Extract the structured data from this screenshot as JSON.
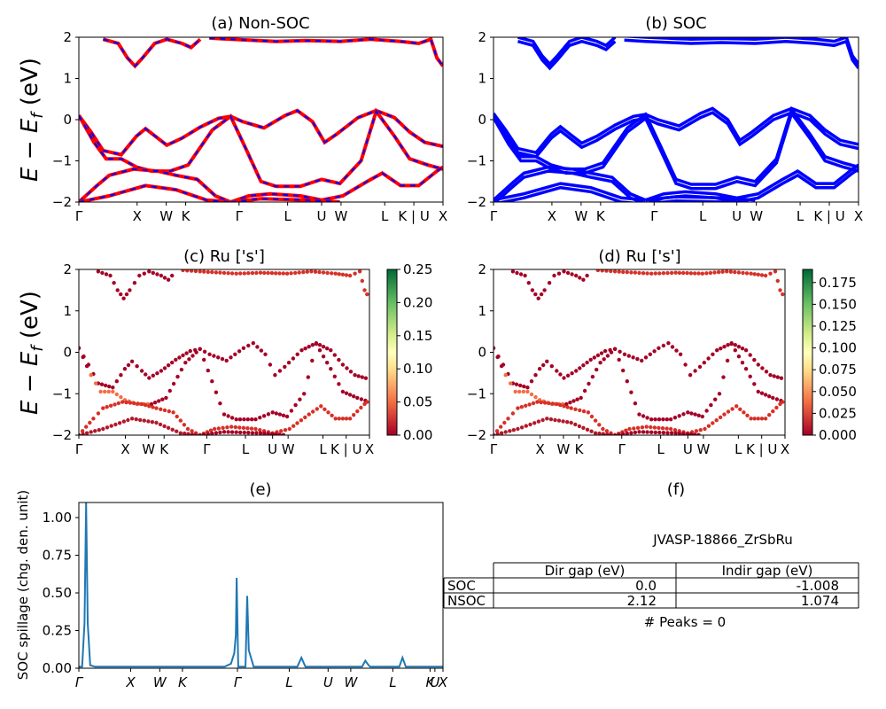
{
  "chart_data": [
    {
      "id": "a",
      "type": "line",
      "title": "(a) Non-SOC",
      "ylabel": "E - E_f (eV)",
      "ylim": [
        -2,
        2
      ],
      "yticks": [
        "2",
        "1",
        "0",
        "-1",
        "-2"
      ],
      "kpoints": [
        "Γ",
        "X",
        "W",
        "K",
        "Γ",
        "L",
        "U",
        "W",
        "L",
        "K | U",
        "X"
      ],
      "series_colors": [
        "#ff0000",
        "#0000ff"
      ],
      "bands": [
        [
          [
            0,
            0.1
          ],
          [
            0.4,
            -0.3
          ],
          [
            0.8,
            -0.75
          ],
          [
            1.4,
            -0.85
          ],
          [
            1.9,
            -0.4
          ],
          [
            2.2,
            -0.22
          ],
          [
            2.6,
            -0.45
          ],
          [
            2.9,
            -0.62
          ],
          [
            3.4,
            -0.45
          ],
          [
            4.0,
            -0.18
          ],
          [
            4.6,
            0.03
          ],
          [
            5.0,
            0.08
          ],
          [
            5.4,
            -0.05
          ],
          [
            6.1,
            -0.2
          ],
          [
            6.8,
            0.1
          ],
          [
            7.2,
            0.22
          ],
          [
            7.7,
            -0.05
          ],
          [
            8.1,
            -0.55
          ],
          [
            8.5,
            -0.35
          ],
          [
            9.2,
            0.05
          ],
          [
            9.8,
            0.22
          ],
          [
            10.4,
            0.05
          ],
          [
            10.9,
            -0.3
          ],
          [
            11.4,
            -0.55
          ],
          [
            12.0,
            -0.65
          ]
        ],
        [
          [
            0,
            0.1
          ],
          [
            0.5,
            -0.55
          ],
          [
            0.9,
            -0.95
          ],
          [
            1.4,
            -0.95
          ],
          [
            1.9,
            -1.15
          ],
          [
            2.4,
            -1.25
          ],
          [
            3.0,
            -1.25
          ],
          [
            3.6,
            -1.1
          ],
          [
            4.4,
            -0.25
          ],
          [
            5.0,
            0.08
          ],
          [
            5.5,
            -0.7
          ],
          [
            6.0,
            -1.5
          ],
          [
            6.5,
            -1.62
          ],
          [
            7.3,
            -1.62
          ],
          [
            8.0,
            -1.45
          ],
          [
            8.6,
            -1.55
          ],
          [
            9.3,
            -1.0
          ],
          [
            9.8,
            0.2
          ],
          [
            10.4,
            -0.4
          ],
          [
            10.9,
            -0.95
          ],
          [
            11.5,
            -1.1
          ],
          [
            12.0,
            -1.2
          ]
        ],
        [
          [
            0,
            -2.0
          ],
          [
            0.6,
            -1.6
          ],
          [
            1.0,
            -1.35
          ],
          [
            1.8,
            -1.2
          ],
          [
            2.6,
            -1.25
          ],
          [
            3.2,
            -1.35
          ],
          [
            3.9,
            -1.45
          ],
          [
            4.5,
            -1.85
          ],
          [
            5.0,
            -2.0
          ]
        ],
        [
          [
            5.0,
            -2.0
          ],
          [
            5.6,
            -1.85
          ],
          [
            6.3,
            -1.8
          ],
          [
            7.3,
            -1.85
          ],
          [
            8.0,
            -1.95
          ],
          [
            8.7,
            -1.85
          ],
          [
            9.5,
            -1.5
          ],
          [
            10.0,
            -1.3
          ],
          [
            10.6,
            -1.6
          ],
          [
            11.2,
            -1.6
          ],
          [
            11.8,
            -1.25
          ],
          [
            12.0,
            -1.15
          ]
        ],
        [
          [
            0,
            -2.0
          ],
          [
            1.0,
            -1.85
          ],
          [
            2.2,
            -1.6
          ],
          [
            3.2,
            -1.7
          ],
          [
            4.2,
            -1.95
          ],
          [
            5.0,
            -2.0
          ]
        ],
        [
          [
            5.0,
            -2.0
          ],
          [
            6.0,
            -1.92
          ],
          [
            7.5,
            -1.95
          ],
          [
            8.6,
            -2.0
          ]
        ],
        [
          [
            0.8,
            1.95
          ],
          [
            1.3,
            1.85
          ],
          [
            1.6,
            1.5
          ],
          [
            1.85,
            1.3
          ],
          [
            2.1,
            1.5
          ],
          [
            2.5,
            1.85
          ],
          [
            2.9,
            1.95
          ],
          [
            3.4,
            1.85
          ],
          [
            3.7,
            1.75
          ],
          [
            4.0,
            1.95
          ]
        ],
        [
          [
            4.3,
            1.98
          ],
          [
            5.0,
            1.95
          ],
          [
            6.5,
            1.9
          ],
          [
            7.5,
            1.92
          ],
          [
            8.6,
            1.9
          ],
          [
            9.6,
            1.95
          ],
          [
            10.6,
            1.9
          ],
          [
            11.2,
            1.85
          ],
          [
            11.6,
            1.95
          ],
          [
            11.8,
            1.5
          ],
          [
            12.0,
            1.3
          ]
        ]
      ]
    },
    {
      "id": "b",
      "type": "line",
      "title": "(b) SOC",
      "ylim": [
        -2,
        2
      ],
      "yticks": [
        "2",
        "1",
        "0",
        "-1",
        "-2"
      ],
      "kpoints": [
        "Γ",
        "X",
        "W",
        "K",
        "Γ",
        "L",
        "U",
        "W",
        "L",
        "K | U",
        "X"
      ],
      "series_colors": [
        "#0000ff"
      ]
    },
    {
      "id": "c",
      "type": "scatter",
      "title": "(c)  Ru ['s']",
      "ylabel": "E - E_f (eV)",
      "ylim": [
        -2,
        2
      ],
      "yticks": [
        "2",
        "1",
        "0",
        "-1",
        "-2"
      ],
      "kpoints": [
        "Γ",
        "X",
        "W",
        "K",
        "Γ",
        "L",
        "U",
        "W",
        "L",
        "K | U",
        "X"
      ],
      "colorbar": {
        "min": 0.0,
        "max": 0.25,
        "ticks": [
          "0.25",
          "0.20",
          "0.15",
          "0.10",
          "0.05",
          "0.00"
        ],
        "colormap": "RdYlGn"
      }
    },
    {
      "id": "d",
      "type": "scatter",
      "title": "(d) Ru ['s']",
      "ylim": [
        -2,
        2
      ],
      "yticks": [
        "2",
        "1",
        "0",
        "-1",
        "-2"
      ],
      "kpoints": [
        "Γ",
        "X",
        "W",
        "K",
        "Γ",
        "L",
        "U",
        "W",
        "L",
        "K | U",
        "X"
      ],
      "colorbar": {
        "min": 0.0,
        "max": 0.19,
        "ticks": [
          "0.175",
          "0.150",
          "0.125",
          "0.100",
          "0.075",
          "0.050",
          "0.025",
          "0.000"
        ],
        "colormap": "RdYlGn"
      }
    },
    {
      "id": "e",
      "type": "line",
      "title": "(e)",
      "ylabel": "SOC spillage (chg. den. unit)",
      "ylim": [
        0,
        1.1
      ],
      "yticks": [
        "1.00",
        "0.75",
        "0.50",
        "0.25",
        "0.00"
      ],
      "kpoints": [
        "Γ",
        "X",
        "W",
        "K",
        "Γ",
        "L",
        "U",
        "W",
        "L",
        "K",
        "U",
        "X"
      ],
      "x": [
        0,
        0.2,
        0.35,
        0.45,
        0.55,
        0.7,
        1,
        4,
        7,
        9,
        9.4,
        9.6,
        9.7,
        9.75,
        9.85,
        10.0,
        10.3,
        10.4,
        10.5,
        10.8,
        11.0,
        12,
        13.5,
        13.75,
        14.0,
        15,
        17.5,
        17.7,
        17.9,
        18.0,
        19,
        19.8,
        20.0,
        20.2,
        21,
        22.5
      ],
      "values": [
        0.01,
        0.01,
        0.3,
        1.1,
        0.3,
        0.02,
        0.01,
        0.01,
        0.01,
        0.01,
        0.03,
        0.1,
        0.22,
        0.6,
        0.01,
        0.01,
        0.01,
        0.48,
        0.12,
        0.01,
        0.01,
        0.01,
        0.01,
        0.07,
        0.01,
        0.01,
        0.01,
        0.05,
        0.02,
        0.01,
        0.01,
        0.01,
        0.07,
        0.01,
        0.01,
        0.01
      ]
    },
    {
      "id": "f",
      "type": "table",
      "title": "(f)",
      "subtitle": "JVASP-18866_ZrSbRu",
      "columns": [
        "Dir gap (eV)",
        "Indir gap (eV)"
      ],
      "rows": [
        {
          "label": "SOC",
          "dir": "0.0",
          "indir": "-1.008"
        },
        {
          "label": "NSOC",
          "dir": "2.12",
          "indir": "1.074"
        }
      ],
      "footer": "# Peaks = 0"
    }
  ]
}
